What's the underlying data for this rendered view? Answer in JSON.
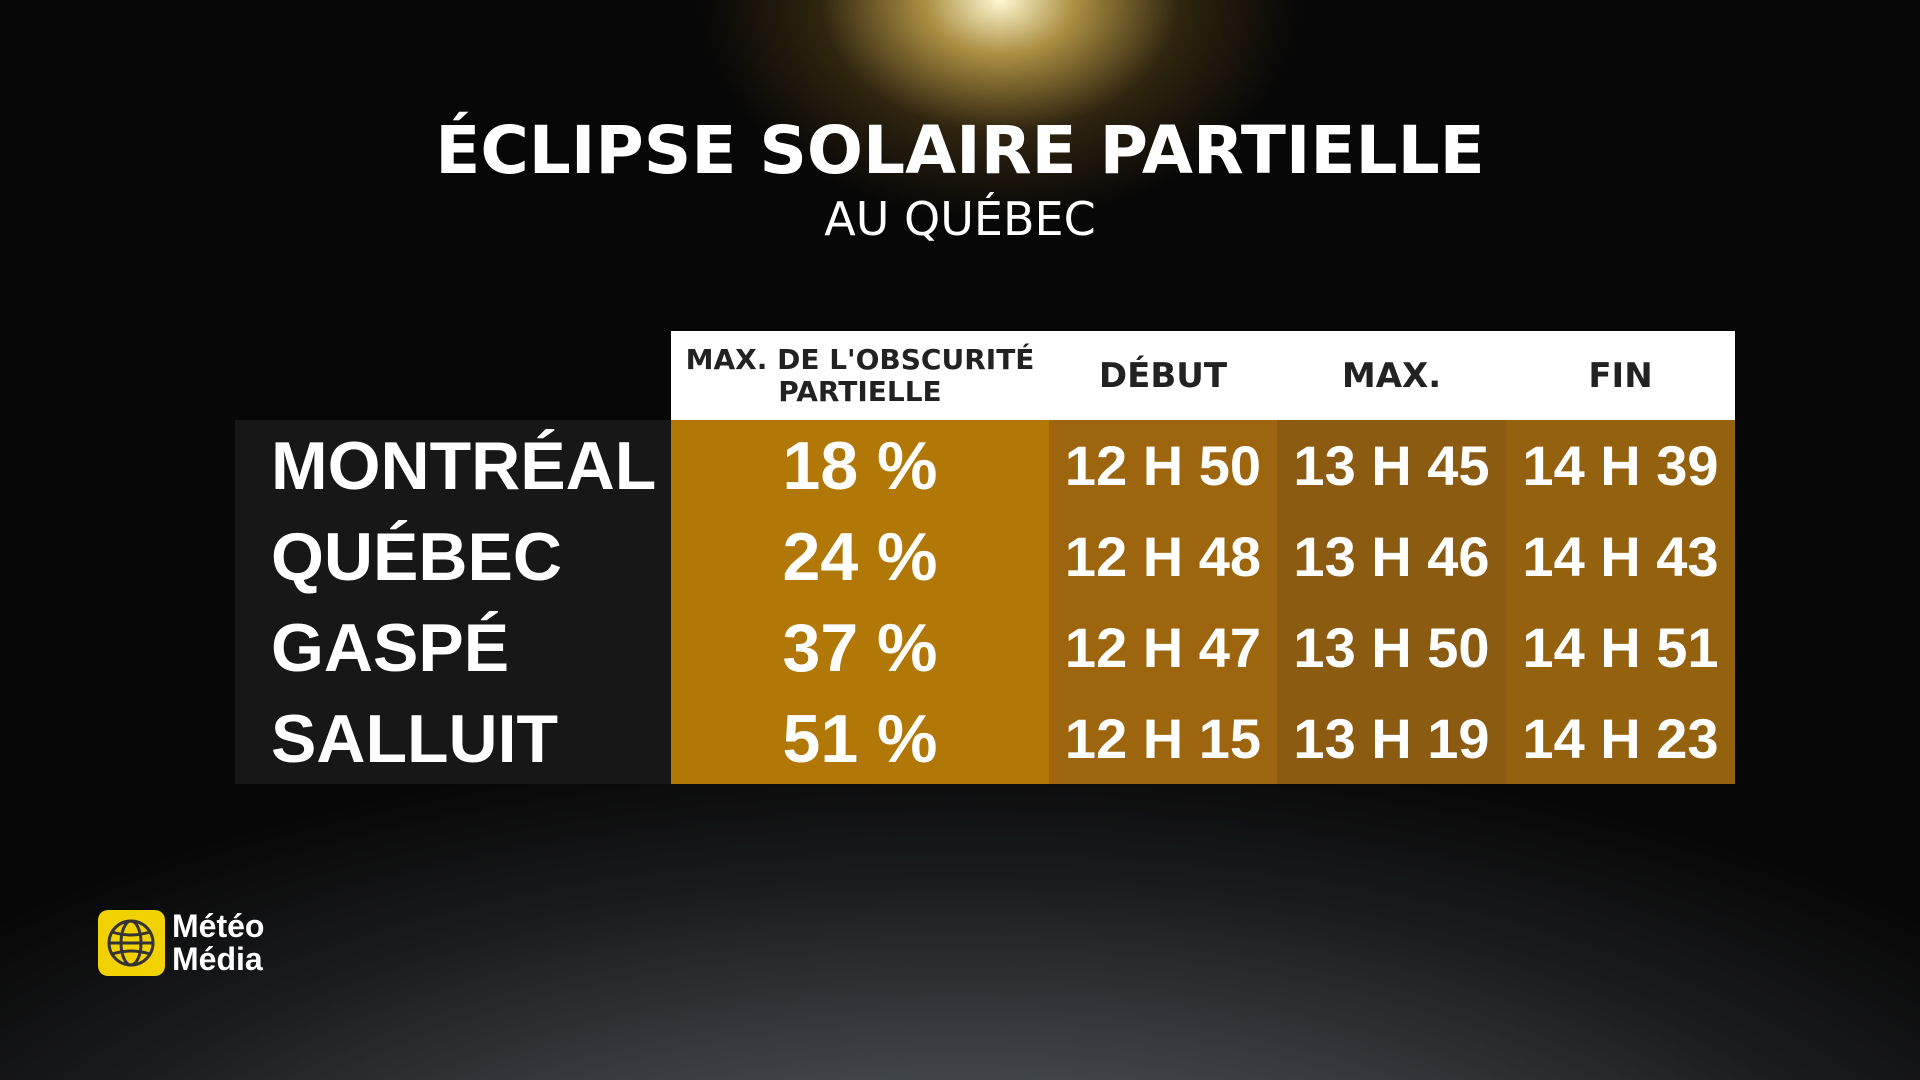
{
  "header": {
    "title": "ÉCLIPSE SOLAIRE PARTIELLE",
    "subtitle": "AU QUÉBEC"
  },
  "table": {
    "columns": [
      "MAX. DE L'OBSCURITÉ PARTIELLE",
      "DÉBUT",
      "MAX.",
      "FIN"
    ],
    "rows": [
      [
        "MONTRÉAL",
        "18 %",
        "12 H 50",
        "13 H 45",
        "14 H 39"
      ],
      [
        "QUÉBEC",
        "24 %",
        "12 H 48",
        "13 H 46",
        "14 H 43"
      ],
      [
        "GASPÉ",
        "37 %",
        "12 H 47",
        "13 H 50",
        "14 H 51"
      ],
      [
        "SALLUIT",
        "51 %",
        "12 H 15",
        "13 H 19",
        "14 H 23"
      ]
    ]
  },
  "logo": {
    "line1": "Météo",
    "line2": "Média"
  }
}
